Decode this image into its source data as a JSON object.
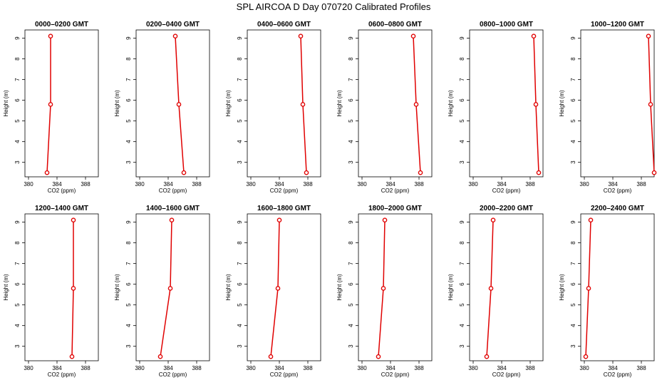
{
  "figure": {
    "title": "SPL AIRCOA D  Day 070720  Calibrated Profiles",
    "colors": {
      "line": "#e00000",
      "axis": "#000000",
      "background": "#ffffff"
    }
  },
  "chart_data": [
    {
      "type": "line",
      "title": "0000–0200 GMT",
      "xlabel": "CO2 (ppm)",
      "ylabel": "Height (m)",
      "xlim": [
        379.5,
        389.8
      ],
      "ylim": [
        2.3,
        9.4
      ],
      "xticks": [
        380,
        384,
        388
      ],
      "yticks": [
        3,
        4,
        5,
        6,
        7,
        8,
        9
      ],
      "grid": false,
      "series": [
        {
          "x": [
            382.6,
            383.1,
            383.1
          ],
          "y": [
            2.5,
            5.8,
            9.1
          ]
        }
      ]
    },
    {
      "type": "line",
      "title": "0200–0400 GMT",
      "xlabel": "CO2 (ppm)",
      "ylabel": "Height (m)",
      "xlim": [
        379.5,
        389.8
      ],
      "ylim": [
        2.3,
        9.4
      ],
      "xticks": [
        380,
        384,
        388
      ],
      "yticks": [
        3,
        4,
        5,
        6,
        7,
        8,
        9
      ],
      "grid": false,
      "series": [
        {
          "x": [
            386.2,
            385.5,
            385.0
          ],
          "y": [
            2.5,
            5.8,
            9.1
          ]
        }
      ]
    },
    {
      "type": "line",
      "title": "0400–0600 GMT",
      "xlabel": "CO2 (ppm)",
      "ylabel": "Height (m)",
      "xlim": [
        379.5,
        389.8
      ],
      "ylim": [
        2.3,
        9.4
      ],
      "xticks": [
        380,
        384,
        388
      ],
      "yticks": [
        3,
        4,
        5,
        6,
        7,
        8,
        9
      ],
      "grid": false,
      "series": [
        {
          "x": [
            387.8,
            387.3,
            387.0
          ],
          "y": [
            2.5,
            5.8,
            9.1
          ]
        }
      ]
    },
    {
      "type": "line",
      "title": "0600–0800 GMT",
      "xlabel": "CO2 (ppm)",
      "ylabel": "Height (m)",
      "xlim": [
        379.5,
        389.8
      ],
      "ylim": [
        2.3,
        9.4
      ],
      "xticks": [
        380,
        384,
        388
      ],
      "yticks": [
        3,
        4,
        5,
        6,
        7,
        8,
        9
      ],
      "grid": false,
      "series": [
        {
          "x": [
            388.2,
            387.6,
            387.2
          ],
          "y": [
            2.5,
            5.8,
            9.1
          ]
        }
      ]
    },
    {
      "type": "line",
      "title": "0800–1000 GMT",
      "xlabel": "CO2 (ppm)",
      "ylabel": "Height (m)",
      "xlim": [
        379.5,
        389.8
      ],
      "ylim": [
        2.3,
        9.4
      ],
      "xticks": [
        380,
        384,
        388
      ],
      "yticks": [
        3,
        4,
        5,
        6,
        7,
        8,
        9
      ],
      "grid": false,
      "series": [
        {
          "x": [
            389.2,
            388.8,
            388.5
          ],
          "y": [
            2.5,
            5.8,
            9.1
          ]
        }
      ]
    },
    {
      "type": "line",
      "title": "1000–1200 GMT",
      "xlabel": "CO2 (ppm)",
      "ylabel": "Height (m)",
      "xlim": [
        379.5,
        389.8
      ],
      "ylim": [
        2.3,
        9.4
      ],
      "xticks": [
        380,
        384,
        388
      ],
      "yticks": [
        3,
        4,
        5,
        6,
        7,
        8,
        9
      ],
      "grid": false,
      "series": [
        {
          "x": [
            389.8,
            389.3,
            389.0
          ],
          "y": [
            2.5,
            5.8,
            9.1
          ]
        }
      ]
    },
    {
      "type": "line",
      "title": "1200–1400 GMT",
      "xlabel": "CO2 (ppm)",
      "ylabel": "Height (m)",
      "xlim": [
        379.5,
        389.8
      ],
      "ylim": [
        2.3,
        9.4
      ],
      "xticks": [
        380,
        384,
        388
      ],
      "yticks": [
        3,
        4,
        5,
        6,
        7,
        8,
        9
      ],
      "grid": false,
      "series": [
        {
          "x": [
            386.1,
            386.3,
            386.3
          ],
          "y": [
            2.5,
            5.8,
            9.1
          ]
        }
      ]
    },
    {
      "type": "line",
      "title": "1400–1600 GMT",
      "xlabel": "CO2 (ppm)",
      "ylabel": "Height (m)",
      "xlim": [
        379.5,
        389.8
      ],
      "ylim": [
        2.3,
        9.4
      ],
      "xticks": [
        380,
        384,
        388
      ],
      "yticks": [
        3,
        4,
        5,
        6,
        7,
        8,
        9
      ],
      "grid": false,
      "series": [
        {
          "x": [
            382.9,
            384.3,
            384.5
          ],
          "y": [
            2.5,
            5.8,
            9.1
          ]
        }
      ]
    },
    {
      "type": "line",
      "title": "1600–1800 GMT",
      "xlabel": "CO2 (ppm)",
      "ylabel": "Height (m)",
      "xlim": [
        379.5,
        389.8
      ],
      "ylim": [
        2.3,
        9.4
      ],
      "xticks": [
        380,
        384,
        388
      ],
      "yticks": [
        3,
        4,
        5,
        6,
        7,
        8,
        9
      ],
      "grid": false,
      "series": [
        {
          "x": [
            382.8,
            383.8,
            384.0
          ],
          "y": [
            2.5,
            5.8,
            9.1
          ]
        }
      ]
    },
    {
      "type": "line",
      "title": "1800–2000 GMT",
      "xlabel": "CO2 (ppm)",
      "ylabel": "Height (m)",
      "xlim": [
        379.5,
        389.8
      ],
      "ylim": [
        2.3,
        9.4
      ],
      "xticks": [
        380,
        384,
        388
      ],
      "yticks": [
        3,
        4,
        5,
        6,
        7,
        8,
        9
      ],
      "grid": false,
      "series": [
        {
          "x": [
            382.3,
            383.0,
            383.2
          ],
          "y": [
            2.5,
            5.8,
            9.1
          ]
        }
      ]
    },
    {
      "type": "line",
      "title": "2000–2200 GMT",
      "xlabel": "CO2 (ppm)",
      "ylabel": "Height (m)",
      "xlim": [
        379.5,
        389.8
      ],
      "ylim": [
        2.3,
        9.4
      ],
      "xticks": [
        380,
        384,
        388
      ],
      "yticks": [
        3,
        4,
        5,
        6,
        7,
        8,
        9
      ],
      "grid": false,
      "series": [
        {
          "x": [
            381.9,
            382.5,
            382.8
          ],
          "y": [
            2.5,
            5.8,
            9.1
          ]
        }
      ]
    },
    {
      "type": "line",
      "title": "2200–2400 GMT",
      "xlabel": "CO2 (ppm)",
      "ylabel": "Height (m)",
      "xlim": [
        379.5,
        389.8
      ],
      "ylim": [
        2.3,
        9.4
      ],
      "xticks": [
        380,
        384,
        388
      ],
      "yticks": [
        3,
        4,
        5,
        6,
        7,
        8,
        9
      ],
      "grid": false,
      "series": [
        {
          "x": [
            380.2,
            380.6,
            380.9
          ],
          "y": [
            2.5,
            5.8,
            9.1
          ]
        }
      ]
    }
  ]
}
